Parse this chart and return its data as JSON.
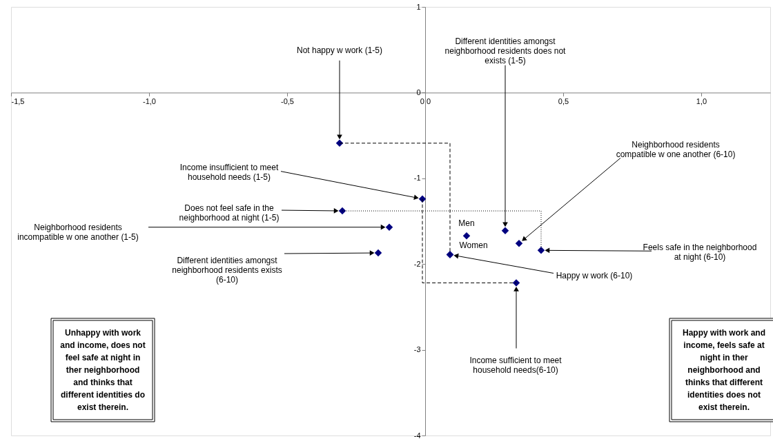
{
  "chart_data": {
    "type": "scatter",
    "xlim": [
      -1.5,
      1.25
    ],
    "ylim": [
      -4,
      1
    ],
    "xticks": [
      {
        "value": -1.5,
        "label": "-1,5"
      },
      {
        "value": -1.0,
        "label": "-1,0"
      },
      {
        "value": -0.5,
        "label": "-0,5"
      },
      {
        "value": 0,
        "label": "0,0"
      },
      {
        "value": 0.5,
        "label": "0,5"
      },
      {
        "value": 1.0,
        "label": "1,0"
      }
    ],
    "yticks": [
      -4,
      -3,
      -2,
      -1,
      0,
      1
    ],
    "grid": false,
    "marker": "diamond",
    "series": [
      {
        "color": "#000080",
        "x": [
          -0.31,
          0.29,
          0.34,
          -0.01,
          -0.3,
          -0.13,
          -0.17,
          0.15,
          0.09,
          0.42,
          0.09,
          0.33
        ],
        "values": [
          -0.59,
          -1.61,
          -1.76,
          -1.24,
          -1.38,
          -1.57,
          -1.87,
          -1.67,
          -1.89,
          -1.84,
          -1.89,
          -2.22
        ]
      },
      {
        "type": "line",
        "color": "#000000",
        "line_style": "dashed",
        "marker": "none",
        "x": [
          -0.31,
          0.09,
          0.09
        ],
        "values": [
          -0.59,
          -0.59,
          -1.89
        ]
      },
      {
        "type": "line",
        "color": "#000000",
        "line_style": "dashed",
        "marker": "none",
        "x": [
          -0.01,
          -0.01,
          0.33
        ],
        "values": [
          -1.24,
          -2.22,
          -2.22
        ]
      },
      {
        "type": "line",
        "color": "#000000",
        "line_style": "dotted",
        "marker": "none",
        "x": [
          -0.3,
          0.42,
          0.42
        ],
        "values": [
          -1.38,
          -1.38,
          -1.84
        ]
      }
    ],
    "annotations": [
      {
        "text": "Not happy w work (1-5)",
        "x": -0.31,
        "y": -0.59
      },
      {
        "text": "Different identities amongst\nneighborhood residents does not\nexists (1-5)",
        "x": 0.29,
        "y": -1.61
      },
      {
        "text": "Neighborhood residents\ncompatible w one another (6-10)",
        "x": 0.34,
        "y": -1.76
      },
      {
        "text": "Income insufficient to meet\nhousehold needs (1-5)",
        "x": -0.01,
        "y": -1.24
      },
      {
        "text": "Does not feel safe in the\nneighborhood at night (1-5)",
        "x": -0.3,
        "y": -1.38
      },
      {
        "text": "Neighborhood residents\nincompatible w one another (1-5)",
        "x": -0.13,
        "y": -1.57
      },
      {
        "text": "Different identities amongst\nneighborhood residents exists\n(6-10)",
        "x": -0.17,
        "y": -1.87
      },
      {
        "text": "Men",
        "x": 0.15,
        "y": -1.67
      },
      {
        "text": "Women",
        "x": 0.09,
        "y": -1.89
      },
      {
        "text": "Feels safe in the neighborhood\nat night (6-10)",
        "x": 0.42,
        "y": -1.84
      },
      {
        "text": "Happy w work (6-10)",
        "x": 0.09,
        "y": -1.89
      },
      {
        "text": "Income sufficient to meet\nhousehold needs(6-10)",
        "x": 0.33,
        "y": -2.22
      },
      "Unhappy with work\nand income, does not\nfeel safe at night in\nther neighborhood\nand thinks that\ndifferent identities do\nexist therein.",
      "Happy with work and\nincome, feels safe at\nnight in ther\nneighborhood and\nthinks that different\nidentities does not\nexist therein."
    ]
  }
}
